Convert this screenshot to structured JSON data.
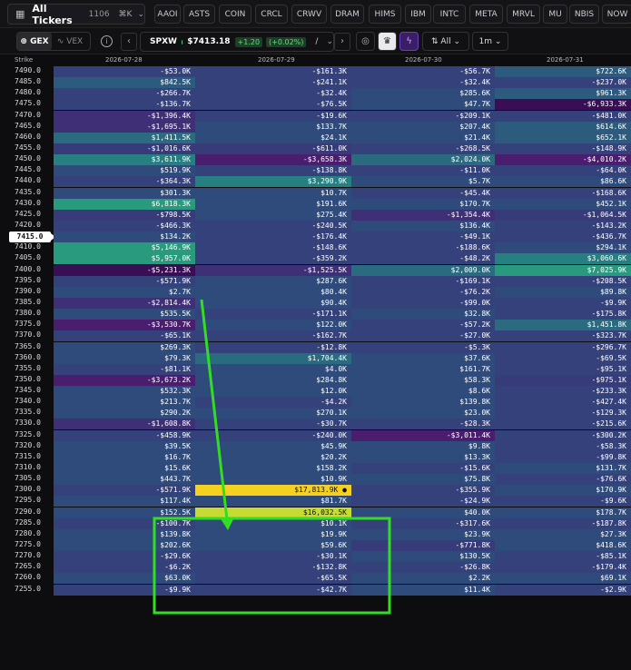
{
  "topbar": {
    "tickers_label": "All Tickers",
    "tickers_count": "1106",
    "shortcut": "⌘K",
    "symbols": [
      "AAOI",
      "ASTS",
      "COIN",
      "CRCL",
      "CRWV",
      "DRAM",
      "HIMS",
      "IBM",
      "INTC",
      "META",
      "MRVL",
      "MU",
      "NBIS",
      "NOW"
    ]
  },
  "toolbar": {
    "gex_label": "GEX",
    "vex_label": "VEX",
    "symbol": "SPXW",
    "price": "$7413.18",
    "change": "+1.20",
    "change_pct": "(+0.02%)",
    "slash": "/",
    "filter_label": "All",
    "interval_label": "1m",
    "status_color": "#3dd26b"
  },
  "table": {
    "strike_header": "Strike",
    "expiries": [
      "2026-07-28",
      "2026-07-29",
      "2026-07-30",
      "2026-07-31"
    ],
    "current_strike": "7415.0",
    "rows": [
      {
        "strike": "7490.0",
        "v": [
          "-$53.0K",
          "-$161.3K",
          "-$56.7K",
          "$722.6K"
        ]
      },
      {
        "strike": "7485.0",
        "v": [
          "$842.5K",
          "-$241.1K",
          "-$32.4K",
          "-$237.0K"
        ]
      },
      {
        "strike": "7480.0",
        "v": [
          "-$266.7K",
          "-$32.4K",
          "$285.6K",
          "$961.3K"
        ]
      },
      {
        "strike": "7475.0",
        "v": [
          "-$136.7K",
          "-$76.5K",
          "$47.7K",
          "-$6,933.3K"
        ]
      },
      {
        "strike": "7470.0",
        "v": [
          "-$1,396.4K",
          "-$19.6K",
          "-$209.1K",
          "-$481.0K"
        ]
      },
      {
        "strike": "7465.0",
        "v": [
          "-$1,695.1K",
          "$133.7K",
          "$207.4K",
          "$614.6K"
        ]
      },
      {
        "strike": "7460.0",
        "v": [
          "$1,411.5K",
          "$24.1K",
          "$21.4K",
          "$652.1K"
        ]
      },
      {
        "strike": "7455.0",
        "v": [
          "-$1,016.6K",
          "-$611.0K",
          "-$268.5K",
          "-$148.9K"
        ]
      },
      {
        "strike": "7450.0",
        "v": [
          "$3,611.9K",
          "-$3,658.3K",
          "$2,024.0K",
          "-$4,010.2K"
        ]
      },
      {
        "strike": "7445.0",
        "v": [
          "$519.9K",
          "-$138.8K",
          "-$11.0K",
          "-$64.0K"
        ]
      },
      {
        "strike": "7440.0",
        "v": [
          "-$364.3K",
          "$3,290.9K",
          "$5.7K",
          "$86.6K"
        ]
      },
      {
        "strike": "7435.0",
        "v": [
          "$301.3K",
          "$10.7K",
          "-$45.4K",
          "-$168.6K"
        ]
      },
      {
        "strike": "7430.0",
        "v": [
          "$6,818.3K",
          "$191.6K",
          "$170.7K",
          "$452.1K"
        ]
      },
      {
        "strike": "7425.0",
        "v": [
          "-$798.5K",
          "$275.4K",
          "-$1,354.4K",
          "-$1,064.5K"
        ]
      },
      {
        "strike": "7420.0",
        "v": [
          "-$466.3K",
          "-$240.5K",
          "$136.4K",
          "-$143.2K"
        ]
      },
      {
        "strike": "7415.0",
        "v": [
          "$134.2K",
          "-$176.4K",
          "-$49.1K",
          "-$436.7K"
        ]
      },
      {
        "strike": "7410.0",
        "v": [
          "$5,146.9K",
          "-$148.6K",
          "-$188.6K",
          "$294.1K"
        ]
      },
      {
        "strike": "7405.0",
        "v": [
          "$5,957.0K",
          "-$359.2K",
          "-$48.2K",
          "$3,060.6K"
        ]
      },
      {
        "strike": "7400.0",
        "v": [
          "-$5,231.3K",
          "-$1,525.5K",
          "$2,009.0K",
          "$7,025.9K"
        ]
      },
      {
        "strike": "7395.0",
        "v": [
          "-$571.9K",
          "$287.6K",
          "-$169.1K",
          "-$208.5K"
        ]
      },
      {
        "strike": "7390.0",
        "v": [
          "$2.7K",
          "$80.4K",
          "-$76.2K",
          "$89.8K"
        ]
      },
      {
        "strike": "7385.0",
        "v": [
          "-$2,814.4K",
          "$90.4K",
          "-$99.0K",
          "-$9.9K"
        ]
      },
      {
        "strike": "7380.0",
        "v": [
          "$535.5K",
          "-$171.1K",
          "$32.8K",
          "-$175.8K"
        ]
      },
      {
        "strike": "7375.0",
        "v": [
          "-$3,530.7K",
          "$122.0K",
          "-$57.2K",
          "$1,451.8K"
        ]
      },
      {
        "strike": "7370.0",
        "v": [
          "-$65.1K",
          "-$162.7K",
          "-$27.0K",
          "-$323.7K"
        ]
      },
      {
        "strike": "7365.0",
        "v": [
          "$269.3K",
          "-$12.8K",
          "-$5.3K",
          "-$296.7K"
        ]
      },
      {
        "strike": "7360.0",
        "v": [
          "$79.3K",
          "$1,704.4K",
          "$37.6K",
          "-$69.5K"
        ]
      },
      {
        "strike": "7355.0",
        "v": [
          "-$81.1K",
          "$4.0K",
          "$161.7K",
          "-$95.1K"
        ]
      },
      {
        "strike": "7350.0",
        "v": [
          "-$3,673.2K",
          "$284.8K",
          "$58.3K",
          "-$975.1K"
        ]
      },
      {
        "strike": "7345.0",
        "v": [
          "$532.3K",
          "$12.0K",
          "$8.6K",
          "-$233.3K"
        ]
      },
      {
        "strike": "7340.0",
        "v": [
          "$213.7K",
          "-$4.2K",
          "$139.8K",
          "-$427.4K"
        ]
      },
      {
        "strike": "7335.0",
        "v": [
          "$290.2K",
          "$270.1K",
          "$23.0K",
          "-$129.3K"
        ]
      },
      {
        "strike": "7330.0",
        "v": [
          "-$1,608.8K",
          "-$30.7K",
          "-$28.3K",
          "-$215.6K"
        ]
      },
      {
        "strike": "7325.0",
        "v": [
          "-$458.9K",
          "-$240.0K",
          "-$3,011.4K",
          "-$300.2K"
        ]
      },
      {
        "strike": "7320.0",
        "v": [
          "$39.5K",
          "$45.9K",
          "$9.8K",
          "-$58.3K"
        ]
      },
      {
        "strike": "7315.0",
        "v": [
          "$16.7K",
          "$20.2K",
          "$13.3K",
          "-$99.8K"
        ]
      },
      {
        "strike": "7310.0",
        "v": [
          "$15.6K",
          "$158.2K",
          "-$15.6K",
          "$131.7K"
        ]
      },
      {
        "strike": "7305.0",
        "v": [
          "$443.7K",
          "$10.9K",
          "$75.8K",
          "-$76.6K"
        ]
      },
      {
        "strike": "7300.0",
        "v": [
          "-$571.9K",
          "$17,813.9K ●",
          "-$355.9K",
          "$170.9K"
        ]
      },
      {
        "strike": "7295.0",
        "v": [
          "$117.4K",
          "$81.7K",
          "-$24.9K",
          "-$9.6K"
        ]
      },
      {
        "strike": "7290.0",
        "v": [
          "$152.5K",
          "$16,032.5K",
          "$40.0K",
          "$178.7K"
        ]
      },
      {
        "strike": "7285.0",
        "v": [
          "-$100.7K",
          "$10.1K",
          "-$317.6K",
          "-$187.8K"
        ]
      },
      {
        "strike": "7280.0",
        "v": [
          "$139.8K",
          "$19.9K",
          "$23.9K",
          "$27.3K"
        ]
      },
      {
        "strike": "7275.0",
        "v": [
          "$202.6K",
          "$59.6K",
          "-$771.8K",
          "$418.6K"
        ]
      },
      {
        "strike": "7270.0",
        "v": [
          "-$29.6K",
          "-$30.1K",
          "$130.5K",
          "-$85.1K"
        ]
      },
      {
        "strike": "7265.0",
        "v": [
          "-$6.2K",
          "-$132.8K",
          "-$26.8K",
          "-$179.4K"
        ]
      },
      {
        "strike": "7260.0",
        "v": [
          "$63.0K",
          "-$65.5K",
          "$2.2K",
          "$69.1K"
        ]
      },
      {
        "strike": "7255.0",
        "v": [
          "-$9.9K",
          "-$42.7K",
          "$11.4K",
          "-$2.9K"
        ]
      }
    ]
  },
  "colors": {
    "base": "#2f4a7a",
    "highlight_yellow": "#f5d020",
    "highlight_lime": "#c6dc32",
    "annotation": "#33dd22"
  }
}
